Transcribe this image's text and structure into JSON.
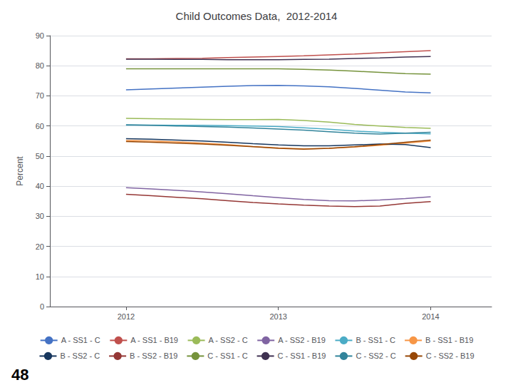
{
  "chart_data": {
    "type": "line",
    "title": "Child Outcomes Data,  2012-2014",
    "ylabel": "Percent",
    "x": [
      2012,
      2012.1666666666667,
      2012.3333333333333,
      2012.5,
      2012.6666666666667,
      2012.8333333333333,
      2013,
      2013.1666666666667,
      2013.3333333333333,
      2013.5,
      2013.6666666666667,
      2013.8333333333333,
      2014
    ],
    "xlim": [
      2011.5,
      2014.4
    ],
    "xticks": [
      2012,
      2013,
      2014
    ],
    "ylim": [
      0,
      90
    ],
    "yticks": [
      0,
      10,
      20,
      30,
      40,
      50,
      60,
      70,
      80,
      90
    ],
    "grid": true,
    "legend": "bottom",
    "annotations": [
      "48"
    ],
    "series": [
      {
        "name": "A - SS1 - C",
        "color": "#4472C4",
        "values": [
          72.0,
          72.3,
          72.6,
          72.9,
          73.2,
          73.4,
          73.5,
          73.3,
          73.0,
          72.5,
          71.9,
          71.3,
          71.0
        ]
      },
      {
        "name": "A - SS1 - B19",
        "color": "#C0504D",
        "values": [
          82.3,
          82.3,
          82.4,
          82.5,
          82.7,
          82.9,
          83.1,
          83.3,
          83.6,
          83.9,
          84.3,
          84.7,
          85.0
        ]
      },
      {
        "name": "A - SS2 - C",
        "color": "#9BBB59",
        "values": [
          62.5,
          62.4,
          62.3,
          62.2,
          62.1,
          62.1,
          62.2,
          61.8,
          61.3,
          60.5,
          60.0,
          59.5,
          59.2
        ]
      },
      {
        "name": "A - SS2 - B19",
        "color": "#8064A2",
        "values": [
          39.5,
          39.1,
          38.6,
          38.1,
          37.5,
          36.8,
          36.2,
          35.6,
          35.2,
          35.1,
          35.4,
          35.9,
          36.5
        ]
      },
      {
        "name": "B - SS1 - C",
        "color": "#4BACC6",
        "values": [
          60.3,
          60.3,
          60.2,
          60.2,
          60.1,
          60.0,
          59.8,
          59.4,
          58.9,
          58.3,
          57.9,
          57.6,
          57.4
        ]
      },
      {
        "name": "B - SS1 - B19",
        "color": "#F79646",
        "values": [
          55.2,
          55.0,
          54.7,
          54.3,
          53.8,
          53.2,
          52.7,
          52.4,
          52.6,
          53.0,
          53.6,
          54.3,
          55.0
        ]
      },
      {
        "name": "B - SS2 - C",
        "color": "#17375E",
        "values": [
          55.8,
          55.6,
          55.3,
          55.0,
          54.6,
          54.1,
          53.7,
          53.4,
          53.4,
          53.7,
          54.0,
          53.8,
          52.8
        ]
      },
      {
        "name": "B - SS2 - B19",
        "color": "#953735",
        "values": [
          37.3,
          36.8,
          36.3,
          35.8,
          35.2,
          34.6,
          34.1,
          33.7,
          33.4,
          33.2,
          33.4,
          34.3,
          34.9
        ]
      },
      {
        "name": "C - SS1 - C",
        "color": "#76933C",
        "values": [
          79.0,
          79.0,
          79.0,
          79.0,
          79.0,
          79.0,
          79.0,
          78.8,
          78.6,
          78.2,
          77.8,
          77.4,
          77.2
        ]
      },
      {
        "name": "C - SS1 - B19",
        "color": "#3F3151",
        "values": [
          82.2,
          82.2,
          82.1,
          82.1,
          82.0,
          82.0,
          82.0,
          82.1,
          82.2,
          82.4,
          82.6,
          82.9,
          83.1
        ]
      },
      {
        "name": "C - SS2 - C",
        "color": "#31849B",
        "values": [
          60.4,
          60.2,
          60.0,
          59.8,
          59.6,
          59.3,
          59.0,
          58.6,
          58.1,
          57.6,
          57.3,
          57.6,
          57.9
        ]
      },
      {
        "name": "C - SS2 - B19",
        "color": "#974706",
        "values": [
          54.8,
          54.6,
          54.3,
          54.0,
          53.6,
          53.1,
          52.6,
          52.3,
          52.6,
          53.1,
          53.8,
          54.6,
          55.3
        ]
      }
    ]
  }
}
